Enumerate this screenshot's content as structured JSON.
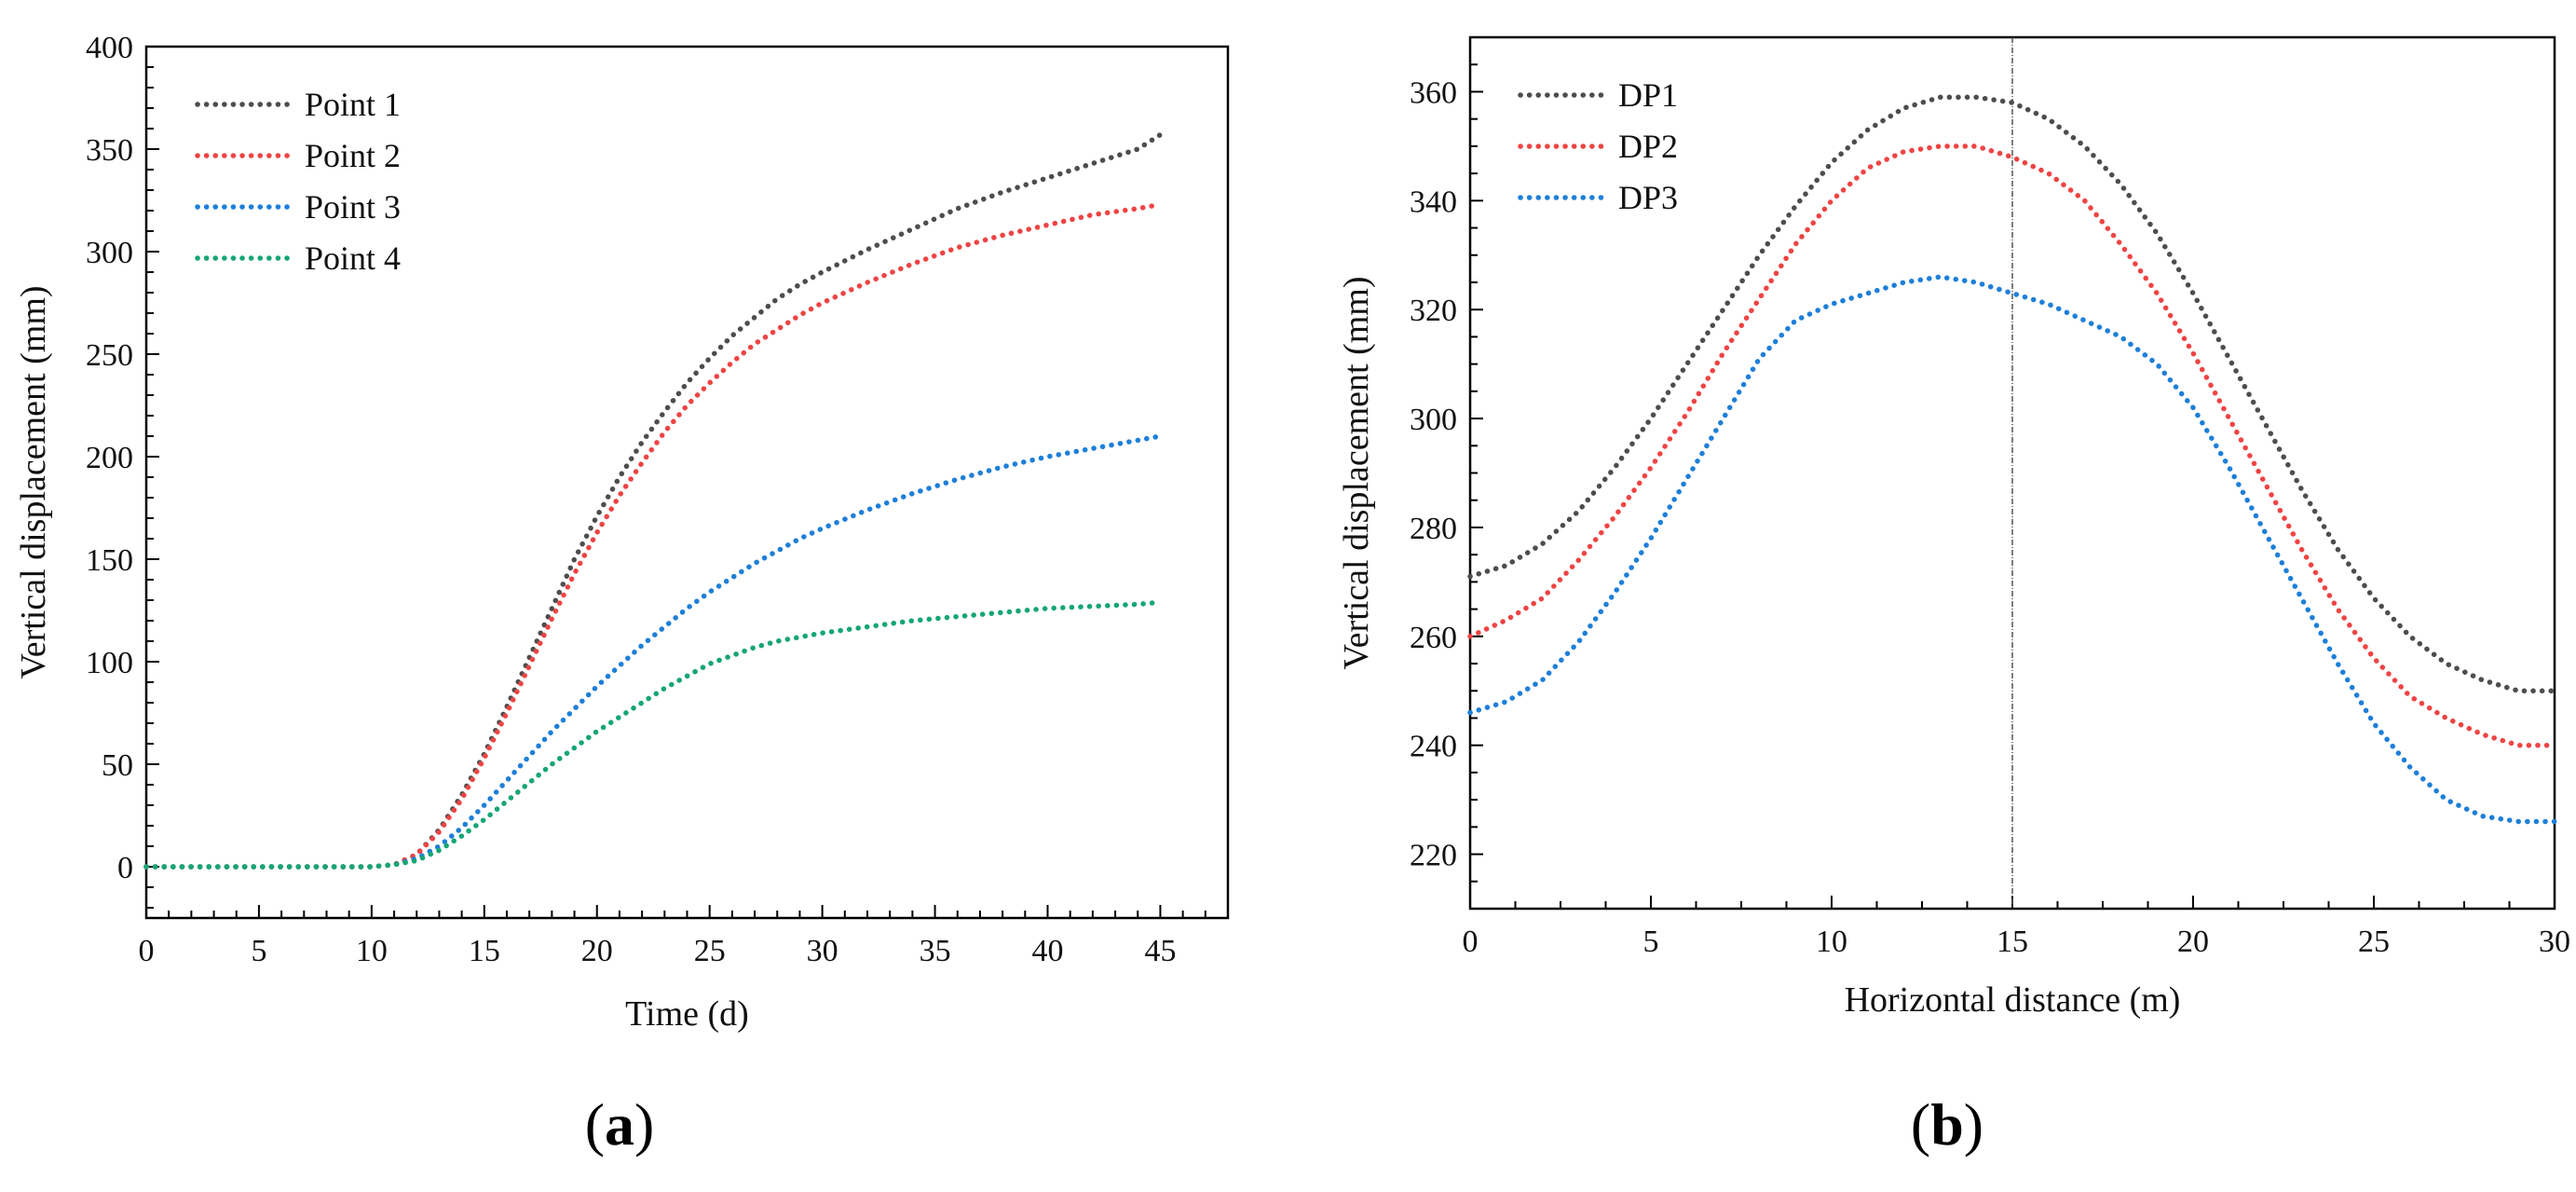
{
  "chart_data": [
    {
      "type": "line",
      "panel": "a",
      "panel_label_open": "(",
      "panel_label_letter": "a",
      "panel_label_close": ")",
      "xlabel": "Time (d)",
      "ylabel": "Vertical displacement (mm)",
      "xlim": [
        0,
        48
      ],
      "ylim": [
        -25,
        400
      ],
      "xticks": [
        0,
        5,
        10,
        15,
        20,
        25,
        30,
        35,
        40,
        45
      ],
      "yticks": [
        0,
        50,
        100,
        150,
        200,
        250,
        300,
        350,
        400
      ],
      "legend_position": "top-left",
      "line_style": "dotted",
      "x": [
        0,
        5,
        10,
        11,
        12,
        13,
        14,
        15,
        16,
        17,
        18,
        19,
        20,
        21,
        22,
        23,
        24,
        25,
        26,
        27,
        28,
        29,
        30,
        32,
        34,
        36,
        38,
        40,
        42,
        44,
        45
      ],
      "series": [
        {
          "name": "Point 1",
          "color": "#4d4d4d",
          "values": [
            0,
            0,
            0,
            1,
            6,
            18,
            35,
            55,
            78,
            102,
            126,
            150,
            171,
            190,
            207,
            222,
            236,
            248,
            259,
            268,
            277,
            284,
            290,
            301,
            311,
            321,
            329,
            336,
            343,
            350,
            357
          ]
        },
        {
          "name": "Point 2",
          "color": "#ef4444",
          "values": [
            0,
            0,
            0,
            1,
            6,
            17,
            33,
            53,
            75,
            98,
            121,
            143,
            163,
            181,
            197,
            212,
            225,
            236,
            246,
            255,
            262,
            269,
            275,
            285,
            294,
            302,
            308,
            313,
            318,
            321,
            323
          ]
        },
        {
          "name": "Point 3",
          "color": "#1e7fd8",
          "values": [
            0,
            0,
            0,
            1,
            4,
            10,
            19,
            30,
            42,
            54,
            66,
            77,
            88,
            98,
            108,
            117,
            126,
            134,
            141,
            148,
            154,
            160,
            165,
            174,
            182,
            189,
            195,
            200,
            204,
            208,
            210
          ]
        },
        {
          "name": "Point 4",
          "color": "#17a673",
          "values": [
            0,
            0,
            0,
            1,
            3,
            8,
            15,
            23,
            32,
            41,
            50,
            58,
            66,
            73,
            80,
            87,
            93,
            99,
            103,
            107,
            110,
            112,
            114,
            117,
            120,
            122,
            124,
            126,
            127,
            128,
            129
          ]
        }
      ]
    },
    {
      "type": "line",
      "panel": "b",
      "panel_label_open": "(",
      "panel_label_letter": "b",
      "panel_label_close": ")",
      "xlabel": "Horizontal distance (m)",
      "ylabel": "Vertical displacement (mm)",
      "xlim": [
        0,
        30
      ],
      "ylim": [
        210,
        370
      ],
      "xticks": [
        0,
        5,
        10,
        15,
        20,
        25,
        30
      ],
      "yticks": [
        220,
        240,
        260,
        280,
        300,
        320,
        340,
        360
      ],
      "legend_position": "top-left",
      "line_style": "dotted",
      "reference_line_x": 15,
      "x": [
        0,
        1,
        2,
        3,
        4,
        5,
        6,
        7,
        8,
        9,
        10,
        11,
        12,
        13,
        14,
        15,
        16,
        17,
        18,
        19,
        20,
        21,
        22,
        23,
        24,
        25,
        26,
        27,
        28,
        29,
        30
      ],
      "series": [
        {
          "name": "DP1",
          "color": "#4d4d4d",
          "values": [
            271,
            273,
            277,
            283,
            291,
            300,
            310,
            320,
            330,
            339,
            347,
            353,
            357,
            359,
            359,
            358,
            355,
            350,
            343,
            334,
            323,
            311,
            299,
            287,
            276,
            267,
            260,
            255,
            252,
            250,
            250
          ]
        },
        {
          "name": "DP2",
          "color": "#ef4444",
          "values": [
            260,
            263,
            267,
            274,
            282,
            291,
            301,
            312,
            322,
            332,
            340,
            346,
            349,
            350,
            350,
            348,
            345,
            340,
            332,
            323,
            312,
            300,
            288,
            276,
            265,
            256,
            249,
            245,
            242,
            240,
            240
          ]
        },
        {
          "name": "DP3",
          "color": "#1e7fd8",
          "values": [
            246,
            248,
            252,
            259,
            268,
            278,
            289,
            300,
            311,
            318,
            321,
            323,
            325,
            326,
            325,
            323,
            321,
            318,
            315,
            310,
            302,
            291,
            279,
            267,
            255,
            244,
            236,
            230,
            227,
            226,
            226
          ]
        }
      ]
    }
  ]
}
